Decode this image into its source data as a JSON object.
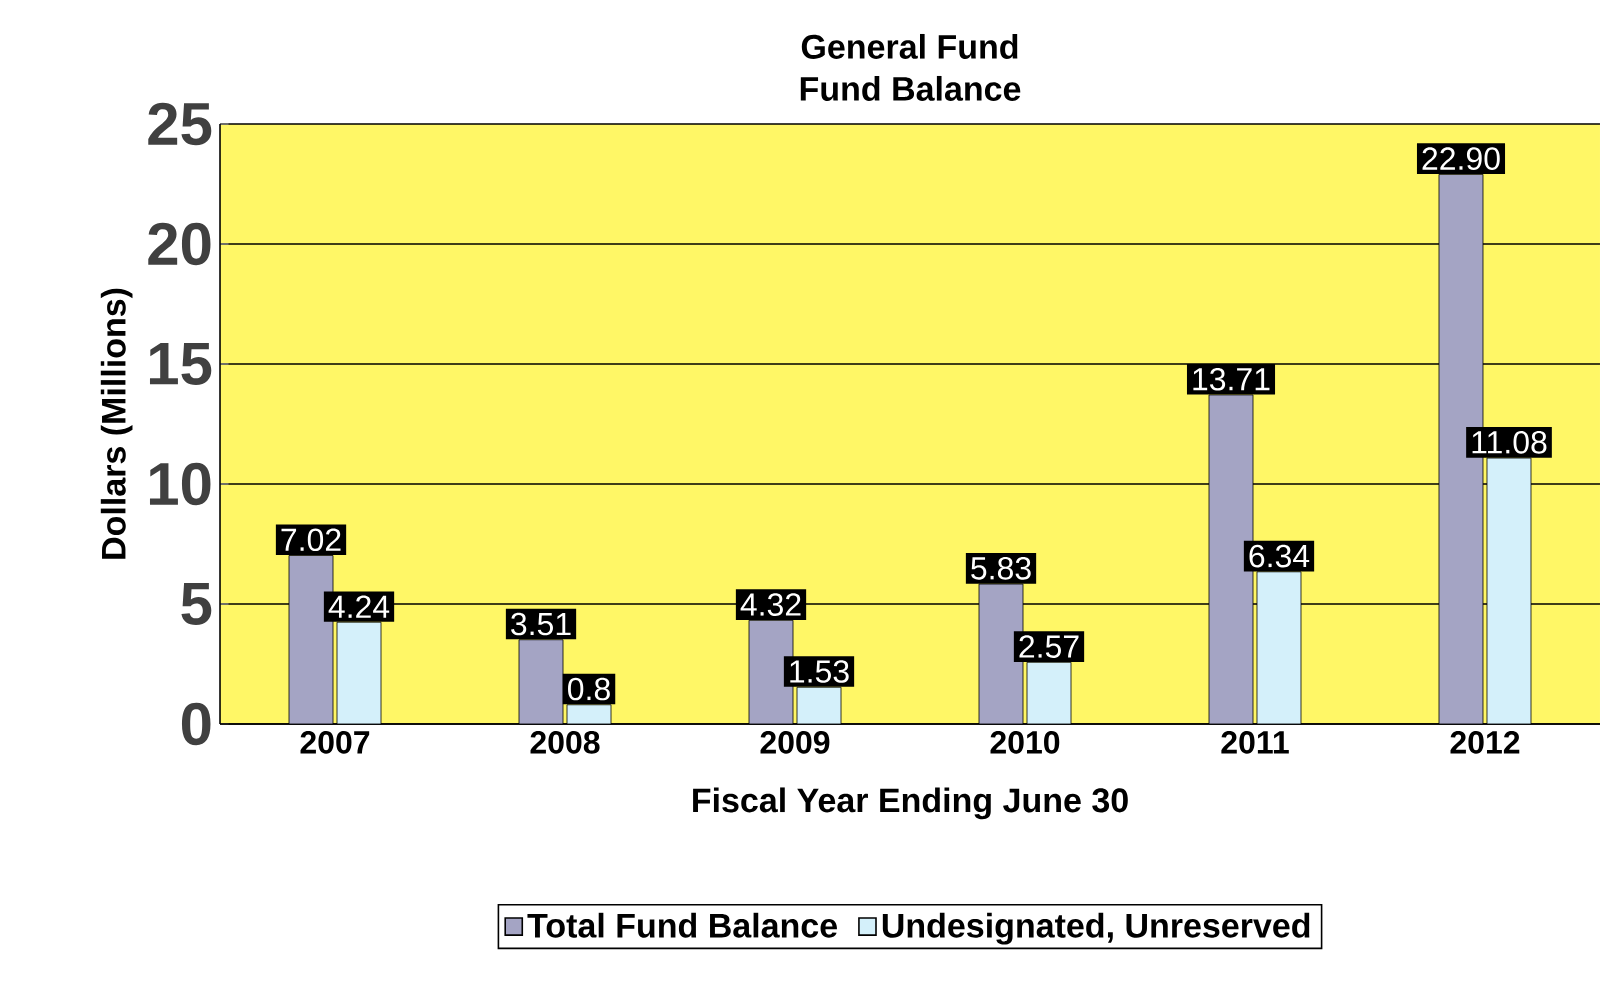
{
  "chart_data": {
    "type": "bar",
    "title": "General Fund",
    "subtitle": "Fund Balance",
    "xlabel": "Fiscal Year Ending June 30",
    "ylabel": "Dollars (Millions)",
    "categories": [
      "2007",
      "2008",
      "2009",
      "2010",
      "2011",
      "2012"
    ],
    "series": [
      {
        "name": "Total Fund Balance",
        "color": "#a4a4c4",
        "values": [
          7.02,
          3.51,
          4.32,
          5.83,
          13.71,
          22.9
        ],
        "value_labels": [
          "7.02",
          "3.51",
          "4.32",
          "5.83",
          "13.71",
          "22.90"
        ]
      },
      {
        "name": "Undesignated, Unreserved",
        "color": "#d4f0fa",
        "values": [
          4.24,
          0.8,
          1.53,
          2.57,
          6.34,
          11.08
        ],
        "value_labels": [
          "4.24",
          "0.8",
          "1.53",
          "2.57",
          "6.34",
          "11.08"
        ]
      }
    ],
    "ylim": [
      0,
      25
    ],
    "yticks": [
      0,
      5,
      10,
      15,
      20,
      25
    ],
    "grid": "y",
    "legend": "bottom"
  }
}
